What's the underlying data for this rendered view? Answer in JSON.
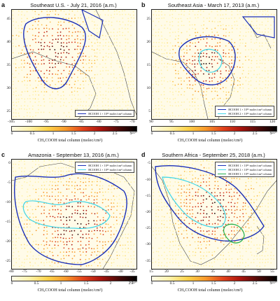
{
  "panels": [
    {
      "label": "a",
      "title": "Southeast U.S. - July 21, 2016 (a.m.)",
      "lat_ticks": [
        "45",
        "40",
        "35",
        "30",
        "25"
      ],
      "lon_ticks": [
        "-105",
        "-100",
        "-95",
        "-90",
        "-85",
        "-80",
        "-75",
        "-70"
      ],
      "cbar_ticks": [
        "0",
        "0.5",
        "1",
        "1.5",
        "2",
        "2.5",
        "3"
      ],
      "cbar_exp": "×10¹⁶",
      "cbar_title": "CH₃COOH total column (molec/cm²)",
      "legend": [
        {
          "text": "HCOOH 1 × 10¹⁶ molec/cm² column",
          "color": "#1a2fb8"
        }
      ]
    },
    {
      "label": "b",
      "title": "Southeast Asia - March 17, 2013 (a.m.)",
      "lat_ticks": [
        "25",
        "20",
        "15",
        "10",
        "5"
      ],
      "lon_ticks": [
        "90",
        "95",
        "100",
        "105",
        "110",
        "115",
        "120"
      ],
      "cbar_ticks": [
        "0",
        "0.5",
        "1",
        "1.5",
        "2",
        "2.5",
        "3"
      ],
      "cbar_exp": "×10¹⁶",
      "cbar_title": "CH₃COOH total column (molec/cm²)",
      "legend": [
        {
          "text": "HCOOH 1 × 10¹⁶ molec/cm² column",
          "color": "#1a2fb8"
        },
        {
          "text": "HCOOH 2 × 10¹⁶ molec/cm² column",
          "color": "#3fd6e8"
        }
      ]
    },
    {
      "label": "c",
      "title": "Amazonia - September 13, 2016 (a.m.)",
      "lat_ticks": [
        "0",
        "-5",
        "-10",
        "-15",
        "-20",
        "-25"
      ],
      "lon_ticks": [
        "-80",
        "-75",
        "-70",
        "-65",
        "-60",
        "-55",
        "-50",
        "-45",
        "-40",
        "-35"
      ],
      "cbar_ticks": [
        "0",
        "0.5",
        "1",
        "1.5",
        "2",
        "2.5"
      ],
      "cbar_exp": "×10¹⁶",
      "cbar_title": "CH₃COOH total column (molec/cm²)",
      "legend": [
        {
          "text": "HCOOH 1 × 10¹⁶ molec/cm² column",
          "color": "#1a2fb8"
        },
        {
          "text": "HCOOH 2 × 10¹⁶ molec/cm² column",
          "color": "#3fd6e8"
        }
      ]
    },
    {
      "label": "d",
      "title": "Southern Africa - September 25, 2018 (a.m.)",
      "lat_ticks": [
        "-5",
        "-10",
        "-15",
        "-20",
        "-25",
        "-30",
        "-35"
      ],
      "lon_ticks": [
        "15",
        "20",
        "25",
        "30",
        "35",
        "40",
        "45",
        "50",
        "55"
      ],
      "cbar_ticks": [
        "0",
        "0.5",
        "1",
        "1.5",
        "2",
        "2.5",
        "3"
      ],
      "cbar_exp": "×10¹⁶",
      "cbar_title": "CH₃COOH total column (molec/cm²)",
      "legend": [
        {
          "text": "HCOOH 1 × 10¹⁶ molec/cm² column",
          "color": "#1a2fb8"
        },
        {
          "text": "HCOOH 2 × 10¹⁶ molec/cm² column",
          "color": "#3fd6e8"
        },
        {
          "text": "HCOOH 3 × 10¹⁶ molec/cm² column",
          "color": "#1fb04a"
        }
      ]
    }
  ]
}
